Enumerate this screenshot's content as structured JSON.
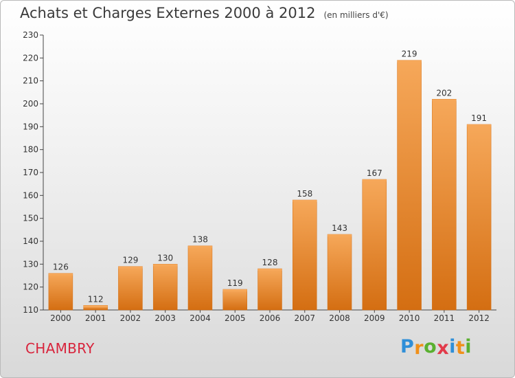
{
  "title": "Achats et Charges Externes 2000 à 2012",
  "unit": "(en milliers d'€)",
  "commune": "CHAMBRY",
  "logo": {
    "letters": [
      "P",
      "r",
      "o",
      "x",
      "i",
      "t",
      "i"
    ],
    "colors": [
      "#2f8fd8",
      "#f0901a",
      "#5ab030",
      "#e23a4a",
      "#2f8fd8",
      "#f0901a",
      "#5ab030"
    ]
  },
  "colors": {
    "bar": "#f28a2a",
    "bar_light": "#f6a85a",
    "bar_dark": "#d46e12"
  },
  "chart_data": {
    "type": "bar",
    "categories": [
      "2000",
      "2001",
      "2002",
      "2003",
      "2004",
      "2005",
      "2006",
      "2007",
      "2008",
      "2009",
      "2010",
      "2011",
      "2012"
    ],
    "values": [
      126,
      112,
      129,
      130,
      138,
      119,
      128,
      158,
      143,
      167,
      219,
      202,
      191
    ],
    "data_labels": [
      "126",
      "112",
      "129",
      "130",
      "138",
      "119",
      "128",
      "158",
      "143",
      "167",
      "219",
      "202",
      "191"
    ],
    "yticks": [
      110,
      120,
      130,
      140,
      150,
      160,
      170,
      180,
      190,
      200,
      210,
      220,
      230
    ],
    "ylim": [
      110,
      230
    ],
    "title": "Achats et Charges Externes 2000 à 2012",
    "xlabel": "",
    "ylabel": "",
    "grid": false
  }
}
